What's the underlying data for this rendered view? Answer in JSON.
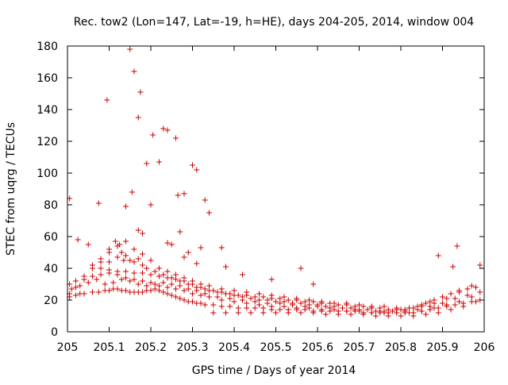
{
  "chart_data": {
    "type": "scatter",
    "title": "Rec. tow2 (Lon=147, Lat=-19, h=HE), days 204-205, 2014, window 004",
    "xlabel": "GPS time / Days of year 2014",
    "ylabel": "STEC from uqrg / TECUs",
    "xlim": [
      205,
      206
    ],
    "ylim": [
      0,
      180
    ],
    "xticks": [
      "205",
      "205.1",
      "205.2",
      "205.3",
      "205.4",
      "205.5",
      "205.6",
      "205.7",
      "205.8",
      "205.9",
      "206"
    ],
    "yticks": [
      "0",
      "20",
      "40",
      "60",
      "80",
      "100",
      "120",
      "140",
      "160",
      "180"
    ],
    "grid": false,
    "marker": "plus",
    "color": "#cc0000",
    "series": [
      {
        "x": [
          205.005,
          205.02,
          205.03,
          205.04,
          205.06,
          205.075,
          205.09,
          205.1,
          205.11,
          205.12,
          205.13,
          205.14,
          205.15,
          205.16,
          205.17,
          205.18,
          205.19,
          205.2,
          205.21,
          205.22,
          205.23,
          205.24,
          205.25,
          205.26,
          205.27,
          205.28,
          205.29,
          205.3,
          205.31,
          205.32,
          205.33,
          205.35,
          205.37,
          205.39,
          205.41,
          205.43,
          205.45,
          205.47,
          205.49,
          205.51,
          205.53,
          205.55,
          205.57,
          205.59,
          205.61,
          205.63,
          205.65,
          205.67,
          205.69,
          205.71,
          205.73,
          205.75,
          205.77,
          205.79,
          205.81,
          205.83,
          205.85,
          205.87,
          205.89,
          205.91,
          205.93,
          205.95,
          205.97,
          205.99
        ],
        "y": [
          22,
          23,
          24,
          24,
          25,
          25,
          26,
          26,
          27,
          27,
          26,
          26,
          25,
          25,
          25,
          25,
          26,
          26,
          27,
          26,
          25,
          24,
          23,
          22,
          21,
          20,
          19,
          19,
          18,
          18,
          17,
          17,
          16,
          16,
          15,
          15,
          15,
          15,
          14,
          14,
          14,
          14,
          14,
          13,
          13,
          13,
          13,
          13,
          13,
          12,
          12,
          12,
          12,
          12,
          12,
          12,
          13,
          14,
          15,
          16,
          17,
          18,
          19,
          20
        ]
      },
      {
        "x": [
          205.005,
          205.02,
          205.04,
          205.06,
          205.08,
          205.1,
          205.12,
          205.14,
          205.16,
          205.18,
          205.2,
          205.22,
          205.24,
          205.26,
          205.28,
          205.3,
          205.32,
          205.34,
          205.36,
          205.38,
          205.4,
          205.42,
          205.44,
          205.46,
          205.48,
          205.5,
          205.52,
          205.54,
          205.56,
          205.58,
          205.6,
          205.62,
          205.64,
          205.66,
          205.68,
          205.7,
          205.72,
          205.74,
          205.76,
          205.78,
          205.8,
          205.82,
          205.84,
          205.86,
          205.88,
          205.9,
          205.92,
          205.94,
          205.96,
          205.98
        ],
        "y": [
          30,
          32,
          33,
          35,
          36,
          37,
          38,
          38,
          37,
          37,
          36,
          35,
          34,
          33,
          32,
          30,
          28,
          26,
          25,
          24,
          23,
          22,
          21,
          20,
          20,
          19,
          19,
          18,
          18,
          17,
          17,
          16,
          16,
          15,
          15,
          14,
          14,
          13,
          13,
          13,
          14,
          15,
          16,
          18,
          20,
          22,
          24,
          26,
          27,
          28
        ]
      },
      {
        "x": [
          205.08,
          205.1,
          205.12,
          205.13,
          205.14,
          205.15,
          205.16,
          205.17,
          205.18,
          205.19,
          205.21,
          205.23,
          205.25,
          205.27,
          205.29,
          205.31,
          205.33,
          205.35,
          205.37,
          205.39,
          205.41,
          205.43,
          205.45,
          205.47,
          205.49,
          205.51,
          205.53,
          205.55,
          205.57,
          205.59,
          205.61,
          205.63,
          205.65,
          205.67,
          205.69,
          205.71,
          205.73,
          205.75,
          205.77,
          205.79,
          205.81,
          205.83,
          205.85,
          205.87
        ],
        "y": [
          40,
          44,
          47,
          50,
          48,
          45,
          44,
          46,
          42,
          40,
          38,
          36,
          34,
          32,
          30,
          28,
          27,
          26,
          25,
          24,
          23,
          23,
          22,
          22,
          21,
          21,
          20,
          20,
          19,
          19,
          18,
          18,
          17,
          17,
          16,
          16,
          15,
          15,
          14,
          14,
          14,
          15,
          17,
          19
        ]
      },
      {
        "x": [
          205.01,
          205.03,
          205.05,
          205.07,
          205.09,
          205.11,
          205.13,
          205.15,
          205.17,
          205.19,
          205.21,
          205.23,
          205.25,
          205.27,
          205.29,
          205.31,
          205.33,
          205.36,
          205.39,
          205.42,
          205.45,
          205.48,
          205.51,
          205.54,
          205.57,
          205.6,
          205.63,
          205.66,
          205.69,
          205.72,
          205.75,
          205.78,
          205.81,
          205.84,
          205.87,
          205.9,
          205.93,
          205.96,
          205.99
        ],
        "y": [
          27,
          29,
          31,
          33,
          30,
          31,
          33,
          32,
          30,
          29,
          30,
          31,
          30,
          29,
          27,
          26,
          24,
          22,
          21,
          20,
          19,
          18,
          18,
          17,
          16,
          16,
          15,
          15,
          14,
          14,
          13,
          13,
          13,
          14,
          16,
          18,
          21,
          23,
          25
        ]
      },
      {
        "x": [
          205.06,
          205.08,
          205.1,
          205.12,
          205.14,
          205.16,
          205.18,
          205.2,
          205.22,
          205.24,
          205.26,
          205.28,
          205.3,
          205.32,
          205.34,
          205.37,
          205.4,
          205.43,
          205.46,
          205.49,
          205.52,
          205.55,
          205.58,
          205.61,
          205.64,
          205.67,
          205.7,
          205.73,
          205.76,
          205.79,
          205.82,
          205.85,
          205.88,
          205.91,
          205.94,
          205.97
        ],
        "y": [
          42,
          46,
          50,
          54,
          57,
          52,
          49,
          45,
          40,
          38,
          36,
          34,
          32,
          30,
          29,
          27,
          26,
          25,
          24,
          23,
          22,
          21,
          20,
          19,
          18,
          18,
          17,
          16,
          16,
          15,
          15,
          16,
          18,
          21,
          25,
          29
        ]
      },
      {
        "x": [
          205.005,
          205.02,
          205.04,
          205.06,
          205.08,
          205.1,
          205.12,
          205.14,
          205.16,
          205.18,
          205.2,
          205.22,
          205.24,
          205.26,
          205.28,
          205.3,
          205.32,
          205.34,
          205.37,
          205.4,
          205.43,
          205.46,
          205.49,
          205.52,
          205.55,
          205.58,
          205.61,
          205.64,
          205.67,
          205.7,
          205.73,
          205.76,
          205.79,
          205.82,
          205.85,
          205.88,
          205.91,
          205.94,
          205.97
        ],
        "y": [
          24,
          28,
          35,
          40,
          44,
          39,
          36,
          34,
          33,
          32,
          31,
          29,
          28,
          27,
          26,
          24,
          23,
          22,
          20,
          19,
          18,
          17,
          16,
          16,
          15,
          15,
          14,
          14,
          13,
          13,
          12,
          12,
          12,
          12,
          13,
          15,
          17,
          19,
          22
        ]
      },
      {
        "x": [
          205.35,
          205.38,
          205.41,
          205.44,
          205.47,
          205.5,
          205.53,
          205.56,
          205.59,
          205.62,
          205.65,
          205.68,
          205.71,
          205.74,
          205.77,
          205.8,
          205.83,
          205.86,
          205.89,
          205.92,
          205.95,
          205.98
        ],
        "y": [
          12,
          12,
          12,
          12,
          12,
          12,
          12,
          12,
          12,
          11,
          11,
          11,
          11,
          10,
          10,
          10,
          10,
          11,
          12,
          14,
          16,
          19
        ]
      },
      {
        "x": [
          205.005,
          205.025,
          205.05,
          205.075,
          205.095,
          205.1,
          205.115,
          205.125,
          205.135,
          205.14,
          205.15,
          205.155,
          205.16,
          205.17,
          205.175,
          205.19,
          205.2,
          205.205,
          205.22,
          205.23,
          205.24,
          205.26,
          205.265,
          205.27,
          205.28,
          205.29,
          205.3,
          205.31,
          205.32,
          205.33,
          205.37,
          205.38,
          205.42,
          205.49,
          205.56,
          205.59,
          205.89,
          205.925,
          205.935,
          205.99
        ],
        "y": [
          84,
          58,
          55,
          81,
          146,
          52,
          57,
          55,
          45,
          79,
          178,
          88,
          164,
          135,
          151,
          106,
          80,
          124,
          107,
          128,
          127,
          122,
          86,
          63,
          87,
          50,
          105,
          102,
          53,
          83,
          53,
          41,
          36,
          33,
          40,
          30,
          48,
          41,
          54,
          42
        ]
      },
      {
        "x": [
          205.17,
          205.18,
          205.24,
          205.25,
          205.28,
          205.31,
          205.34
        ],
        "y": [
          64,
          62,
          56,
          55,
          47,
          43,
          75
        ]
      }
    ]
  }
}
